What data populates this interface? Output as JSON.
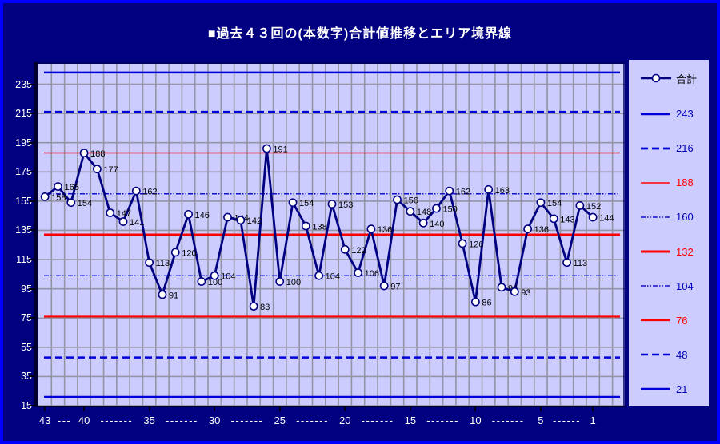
{
  "title": "■過去４３回の(本数字)合計値推移とエリア境界線",
  "legend": {
    "series_label": "合計",
    "series_color": "#000080",
    "series_text_color": "#000000"
  },
  "colors": {
    "page_background": "#000080",
    "window_border": "#0000FF",
    "plot_background": "#CCCCFF",
    "gridline": "#9494A4",
    "series_line": "#000080",
    "marker_fill": "#FFFFFF",
    "data_label": "#000000",
    "axis_text": "#FFFFFF",
    "legend_blue_text": "#0000BB",
    "legend_red_text": "#FF0000"
  },
  "chart_data": {
    "type": "line",
    "title": "■過去４３回の(本数字)合計値推移とエリア境界線",
    "series": [
      {
        "name": "合計",
        "values": [
          158,
          165,
          154,
          188,
          177,
          147,
          141,
          162,
          113,
          91,
          120,
          146,
          100,
          104,
          144,
          142,
          83,
          191,
          100,
          154,
          138,
          104,
          153,
          122,
          106,
          136,
          97,
          156,
          148,
          140,
          150,
          162,
          126,
          86,
          163,
          96,
          93,
          136,
          154,
          143,
          113,
          152,
          144
        ]
      }
    ],
    "point_labels_shown": true,
    "ylim": [
      15,
      250
    ],
    "y_ticks": [
      235,
      215,
      195,
      175,
      155,
      135,
      115,
      95,
      75,
      55,
      35,
      15
    ],
    "x_ticks": [
      {
        "label": "43",
        "index": 0
      },
      {
        "label": "40",
        "index": 3
      },
      {
        "label": "35",
        "index": 8
      },
      {
        "label": "30",
        "index": 13
      },
      {
        "label": "25",
        "index": 18
      },
      {
        "label": "20",
        "index": 23
      },
      {
        "label": "15",
        "index": 28
      },
      {
        "label": "10",
        "index": 33
      },
      {
        "label": "5",
        "index": 38
      },
      {
        "label": "1",
        "index": 42
      }
    ],
    "x_dashes": [
      "---",
      "-------",
      "-------",
      "-------",
      "-------",
      "-------",
      "-------",
      "-------",
      "------"
    ],
    "boundary_lines": [
      {
        "value": 243,
        "color": "#0000D8",
        "style": "solid",
        "width": 2.5
      },
      {
        "value": 216,
        "color": "#0000D8",
        "style": "dashed",
        "width": 2.8
      },
      {
        "value": 188,
        "color": "#FF0000",
        "style": "solid",
        "width": 1.5
      },
      {
        "value": 160,
        "color": "#1212CC",
        "style": "fine-dash",
        "width": 1.4
      },
      {
        "value": 132,
        "color": "#FF0000",
        "style": "solid",
        "width": 3
      },
      {
        "value": 104,
        "color": "#1212CC",
        "style": "fine-dash",
        "width": 1.4
      },
      {
        "value": 76,
        "color": "#FF0000",
        "style": "solid",
        "width": 2.2
      },
      {
        "value": 48,
        "color": "#0000D8",
        "style": "dashed",
        "width": 2.5
      },
      {
        "value": 21,
        "color": "#0000D8",
        "style": "solid",
        "width": 2.5
      }
    ],
    "grid": true,
    "legend_position": "right"
  }
}
